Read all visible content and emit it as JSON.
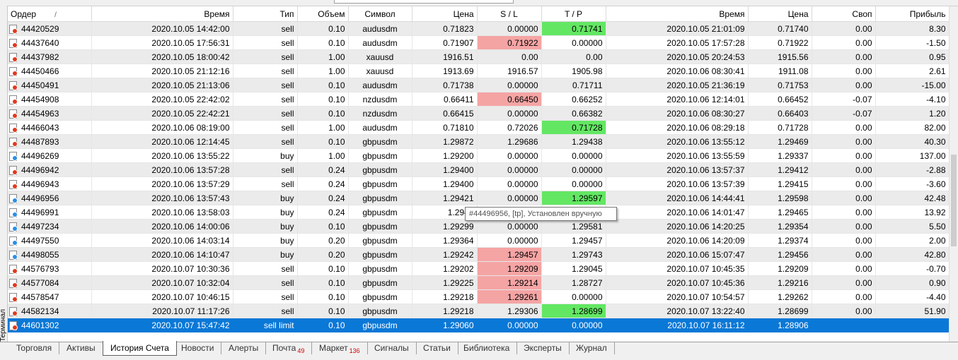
{
  "terminal_label": "Терминал",
  "columns": [
    "Ордер",
    "Время",
    "Тип",
    "Объем",
    "Символ",
    "Цена",
    "S / L",
    "T / P",
    "Время",
    "Цена",
    "Своп",
    "Прибыль"
  ],
  "sort_indicator": "/",
  "tooltip_text": "#44496956, [tp], Установлен вручную",
  "colors": {
    "selection": "#0a78d7",
    "sl_highlight": "#f5a4a4",
    "tp_highlight": "#63e763",
    "sell_dot": "#e03a1e",
    "buy_dot": "#2d8ee6"
  },
  "rows": [
    {
      "order": "44420529",
      "open_time": "2020.10.05 14:42:00",
      "type": "sell",
      "volume": "0.10",
      "symbol": "audusdm",
      "price": "0.71823",
      "sl": "0.00000",
      "tp": "0.71741",
      "close_time": "2020.10.05 21:01:09",
      "close_price": "0.71740",
      "swap": "0.00",
      "profit": "8.30",
      "hl": "tp"
    },
    {
      "order": "44437640",
      "open_time": "2020.10.05 17:56:31",
      "type": "sell",
      "volume": "0.10",
      "symbol": "audusdm",
      "price": "0.71907",
      "sl": "0.71922",
      "tp": "0.00000",
      "close_time": "2020.10.05 17:57:28",
      "close_price": "0.71922",
      "swap": "0.00",
      "profit": "-1.50",
      "hl": "sl"
    },
    {
      "order": "44437982",
      "open_time": "2020.10.05 18:00:42",
      "type": "sell",
      "volume": "1.00",
      "symbol": "xauusd",
      "price": "1916.51",
      "sl": "0.00",
      "tp": "0.00",
      "close_time": "2020.10.05 20:24:53",
      "close_price": "1915.56",
      "swap": "0.00",
      "profit": "0.95",
      "hl": ""
    },
    {
      "order": "44450466",
      "open_time": "2020.10.05 21:12:16",
      "type": "sell",
      "volume": "1.00",
      "symbol": "xauusd",
      "price": "1913.69",
      "sl": "1916.57",
      "tp": "1905.98",
      "close_time": "2020.10.06 08:30:41",
      "close_price": "1911.08",
      "swap": "0.00",
      "profit": "2.61",
      "hl": ""
    },
    {
      "order": "44450491",
      "open_time": "2020.10.05 21:13:06",
      "type": "sell",
      "volume": "0.10",
      "symbol": "audusdm",
      "price": "0.71738",
      "sl": "0.00000",
      "tp": "0.71711",
      "close_time": "2020.10.05 21:36:19",
      "close_price": "0.71753",
      "swap": "0.00",
      "profit": "-15.00",
      "hl": ""
    },
    {
      "order": "44454908",
      "open_time": "2020.10.05 22:42:02",
      "type": "sell",
      "volume": "0.10",
      "symbol": "nzdusdm",
      "price": "0.66411",
      "sl": "0.66450",
      "tp": "0.66252",
      "close_time": "2020.10.06 12:14:01",
      "close_price": "0.66452",
      "swap": "-0.07",
      "profit": "-4.10",
      "hl": "sl"
    },
    {
      "order": "44454963",
      "open_time": "2020.10.05 22:42:21",
      "type": "sell",
      "volume": "0.10",
      "symbol": "nzdusdm",
      "price": "0.66415",
      "sl": "0.00000",
      "tp": "0.66382",
      "close_time": "2020.10.06 08:30:27",
      "close_price": "0.66403",
      "swap": "-0.07",
      "profit": "1.20",
      "hl": ""
    },
    {
      "order": "44466043",
      "open_time": "2020.10.06 08:19:00",
      "type": "sell",
      "volume": "1.00",
      "symbol": "audusdm",
      "price": "0.71810",
      "sl": "0.72026",
      "tp": "0.71728",
      "close_time": "2020.10.06 08:29:18",
      "close_price": "0.71728",
      "swap": "0.00",
      "profit": "82.00",
      "hl": "tp"
    },
    {
      "order": "44487893",
      "open_time": "2020.10.06 12:14:45",
      "type": "sell",
      "volume": "0.10",
      "symbol": "gbpusdm",
      "price": "1.29872",
      "sl": "1.29686",
      "tp": "1.29438",
      "close_time": "2020.10.06 13:55:12",
      "close_price": "1.29469",
      "swap": "0.00",
      "profit": "40.30",
      "hl": ""
    },
    {
      "order": "44496269",
      "open_time": "2020.10.06 13:55:22",
      "type": "buy",
      "volume": "1.00",
      "symbol": "gbpusdm",
      "price": "1.29200",
      "sl": "0.00000",
      "tp": "0.00000",
      "close_time": "2020.10.06 13:55:59",
      "close_price": "1.29337",
      "swap": "0.00",
      "profit": "137.00",
      "hl": ""
    },
    {
      "order": "44496942",
      "open_time": "2020.10.06 13:57:28",
      "type": "sell",
      "volume": "0.24",
      "symbol": "gbpusdm",
      "price": "1.29400",
      "sl": "0.00000",
      "tp": "0.00000",
      "close_time": "2020.10.06 13:57:37",
      "close_price": "1.29412",
      "swap": "0.00",
      "profit": "-2.88",
      "hl": ""
    },
    {
      "order": "44496943",
      "open_time": "2020.10.06 13:57:29",
      "type": "sell",
      "volume": "0.24",
      "symbol": "gbpusdm",
      "price": "1.29400",
      "sl": "0.00000",
      "tp": "0.00000",
      "close_time": "2020.10.06 13:57:39",
      "close_price": "1.29415",
      "swap": "0.00",
      "profit": "-3.60",
      "hl": ""
    },
    {
      "order": "44496956",
      "open_time": "2020.10.06 13:57:43",
      "type": "buy",
      "volume": "0.24",
      "symbol": "gbpusdm",
      "price": "1.29421",
      "sl": "0.00000",
      "tp": "1.29597",
      "close_time": "2020.10.06 14:44:41",
      "close_price": "1.29598",
      "swap": "0.00",
      "profit": "42.48",
      "hl": "tp"
    },
    {
      "order": "44496991",
      "open_time": "2020.10.06 13:58:03",
      "type": "buy",
      "volume": "0.24",
      "symbol": "gbpusdm",
      "price": "1.2940",
      "sl": "",
      "tp": "",
      "close_time": "2020.10.06 14:01:47",
      "close_price": "1.29465",
      "swap": "0.00",
      "profit": "13.92",
      "hl": ""
    },
    {
      "order": "44497234",
      "open_time": "2020.10.06 14:00:06",
      "type": "buy",
      "volume": "0.10",
      "symbol": "gbpusdm",
      "price": "1.29299",
      "sl": "0.00000",
      "tp": "1.29581",
      "close_time": "2020.10.06 14:20:25",
      "close_price": "1.29354",
      "swap": "0.00",
      "profit": "5.50",
      "hl": ""
    },
    {
      "order": "44497550",
      "open_time": "2020.10.06 14:03:14",
      "type": "buy",
      "volume": "0.20",
      "symbol": "gbpusdm",
      "price": "1.29364",
      "sl": "0.00000",
      "tp": "1.29457",
      "close_time": "2020.10.06 14:20:09",
      "close_price": "1.29374",
      "swap": "0.00",
      "profit": "2.00",
      "hl": ""
    },
    {
      "order": "44498055",
      "open_time": "2020.10.06 14:10:47",
      "type": "buy",
      "volume": "0.20",
      "symbol": "gbpusdm",
      "price": "1.29242",
      "sl": "1.29457",
      "tp": "1.29743",
      "close_time": "2020.10.06 15:07:47",
      "close_price": "1.29456",
      "swap": "0.00",
      "profit": "42.80",
      "hl": "sl"
    },
    {
      "order": "44576793",
      "open_time": "2020.10.07 10:30:36",
      "type": "sell",
      "volume": "0.10",
      "symbol": "gbpusdm",
      "price": "1.29202",
      "sl": "1.29209",
      "tp": "1.29045",
      "close_time": "2020.10.07 10:45:35",
      "close_price": "1.29209",
      "swap": "0.00",
      "profit": "-0.70",
      "hl": "sl"
    },
    {
      "order": "44577084",
      "open_time": "2020.10.07 10:32:04",
      "type": "sell",
      "volume": "0.10",
      "symbol": "gbpusdm",
      "price": "1.29225",
      "sl": "1.29214",
      "tp": "1.28727",
      "close_time": "2020.10.07 10:45:36",
      "close_price": "1.29216",
      "swap": "0.00",
      "profit": "0.90",
      "hl": "sl"
    },
    {
      "order": "44578547",
      "open_time": "2020.10.07 10:46:15",
      "type": "sell",
      "volume": "0.10",
      "symbol": "gbpusdm",
      "price": "1.29218",
      "sl": "1.29261",
      "tp": "0.00000",
      "close_time": "2020.10.07 10:54:57",
      "close_price": "1.29262",
      "swap": "0.00",
      "profit": "-4.40",
      "hl": "sl"
    },
    {
      "order": "44582134",
      "open_time": "2020.10.07 11:17:26",
      "type": "sell",
      "volume": "0.10",
      "symbol": "gbpusdm",
      "price": "1.29218",
      "sl": "1.29306",
      "tp": "1.28699",
      "close_time": "2020.10.07 13:22:40",
      "close_price": "1.28699",
      "swap": "0.00",
      "profit": "51.90",
      "hl": "tp"
    },
    {
      "order": "44601302",
      "open_time": "2020.10.07 15:47:42",
      "type": "sell limit",
      "volume": "0.10",
      "symbol": "gbpusdm",
      "price": "1.29060",
      "sl": "0.00000",
      "tp": "0.00000",
      "close_time": "2020.10.07 16:11:12",
      "close_price": "1.28906",
      "swap": "",
      "profit": "",
      "hl": "",
      "selected": true
    }
  ],
  "tabs": [
    {
      "label": "Торговля",
      "badge": ""
    },
    {
      "label": "Активы",
      "badge": ""
    },
    {
      "label": "История Счета",
      "badge": "",
      "active": true
    },
    {
      "label": "Новости",
      "badge": ""
    },
    {
      "label": "Алерты",
      "badge": ""
    },
    {
      "label": "Почта",
      "badge": "49"
    },
    {
      "label": "Маркет",
      "badge": "136"
    },
    {
      "label": "Сигналы",
      "badge": ""
    },
    {
      "label": "Статьи",
      "badge": ""
    },
    {
      "label": "Библиотека",
      "badge": ""
    },
    {
      "label": "Эксперты",
      "badge": ""
    },
    {
      "label": "Журнал",
      "badge": ""
    }
  ]
}
